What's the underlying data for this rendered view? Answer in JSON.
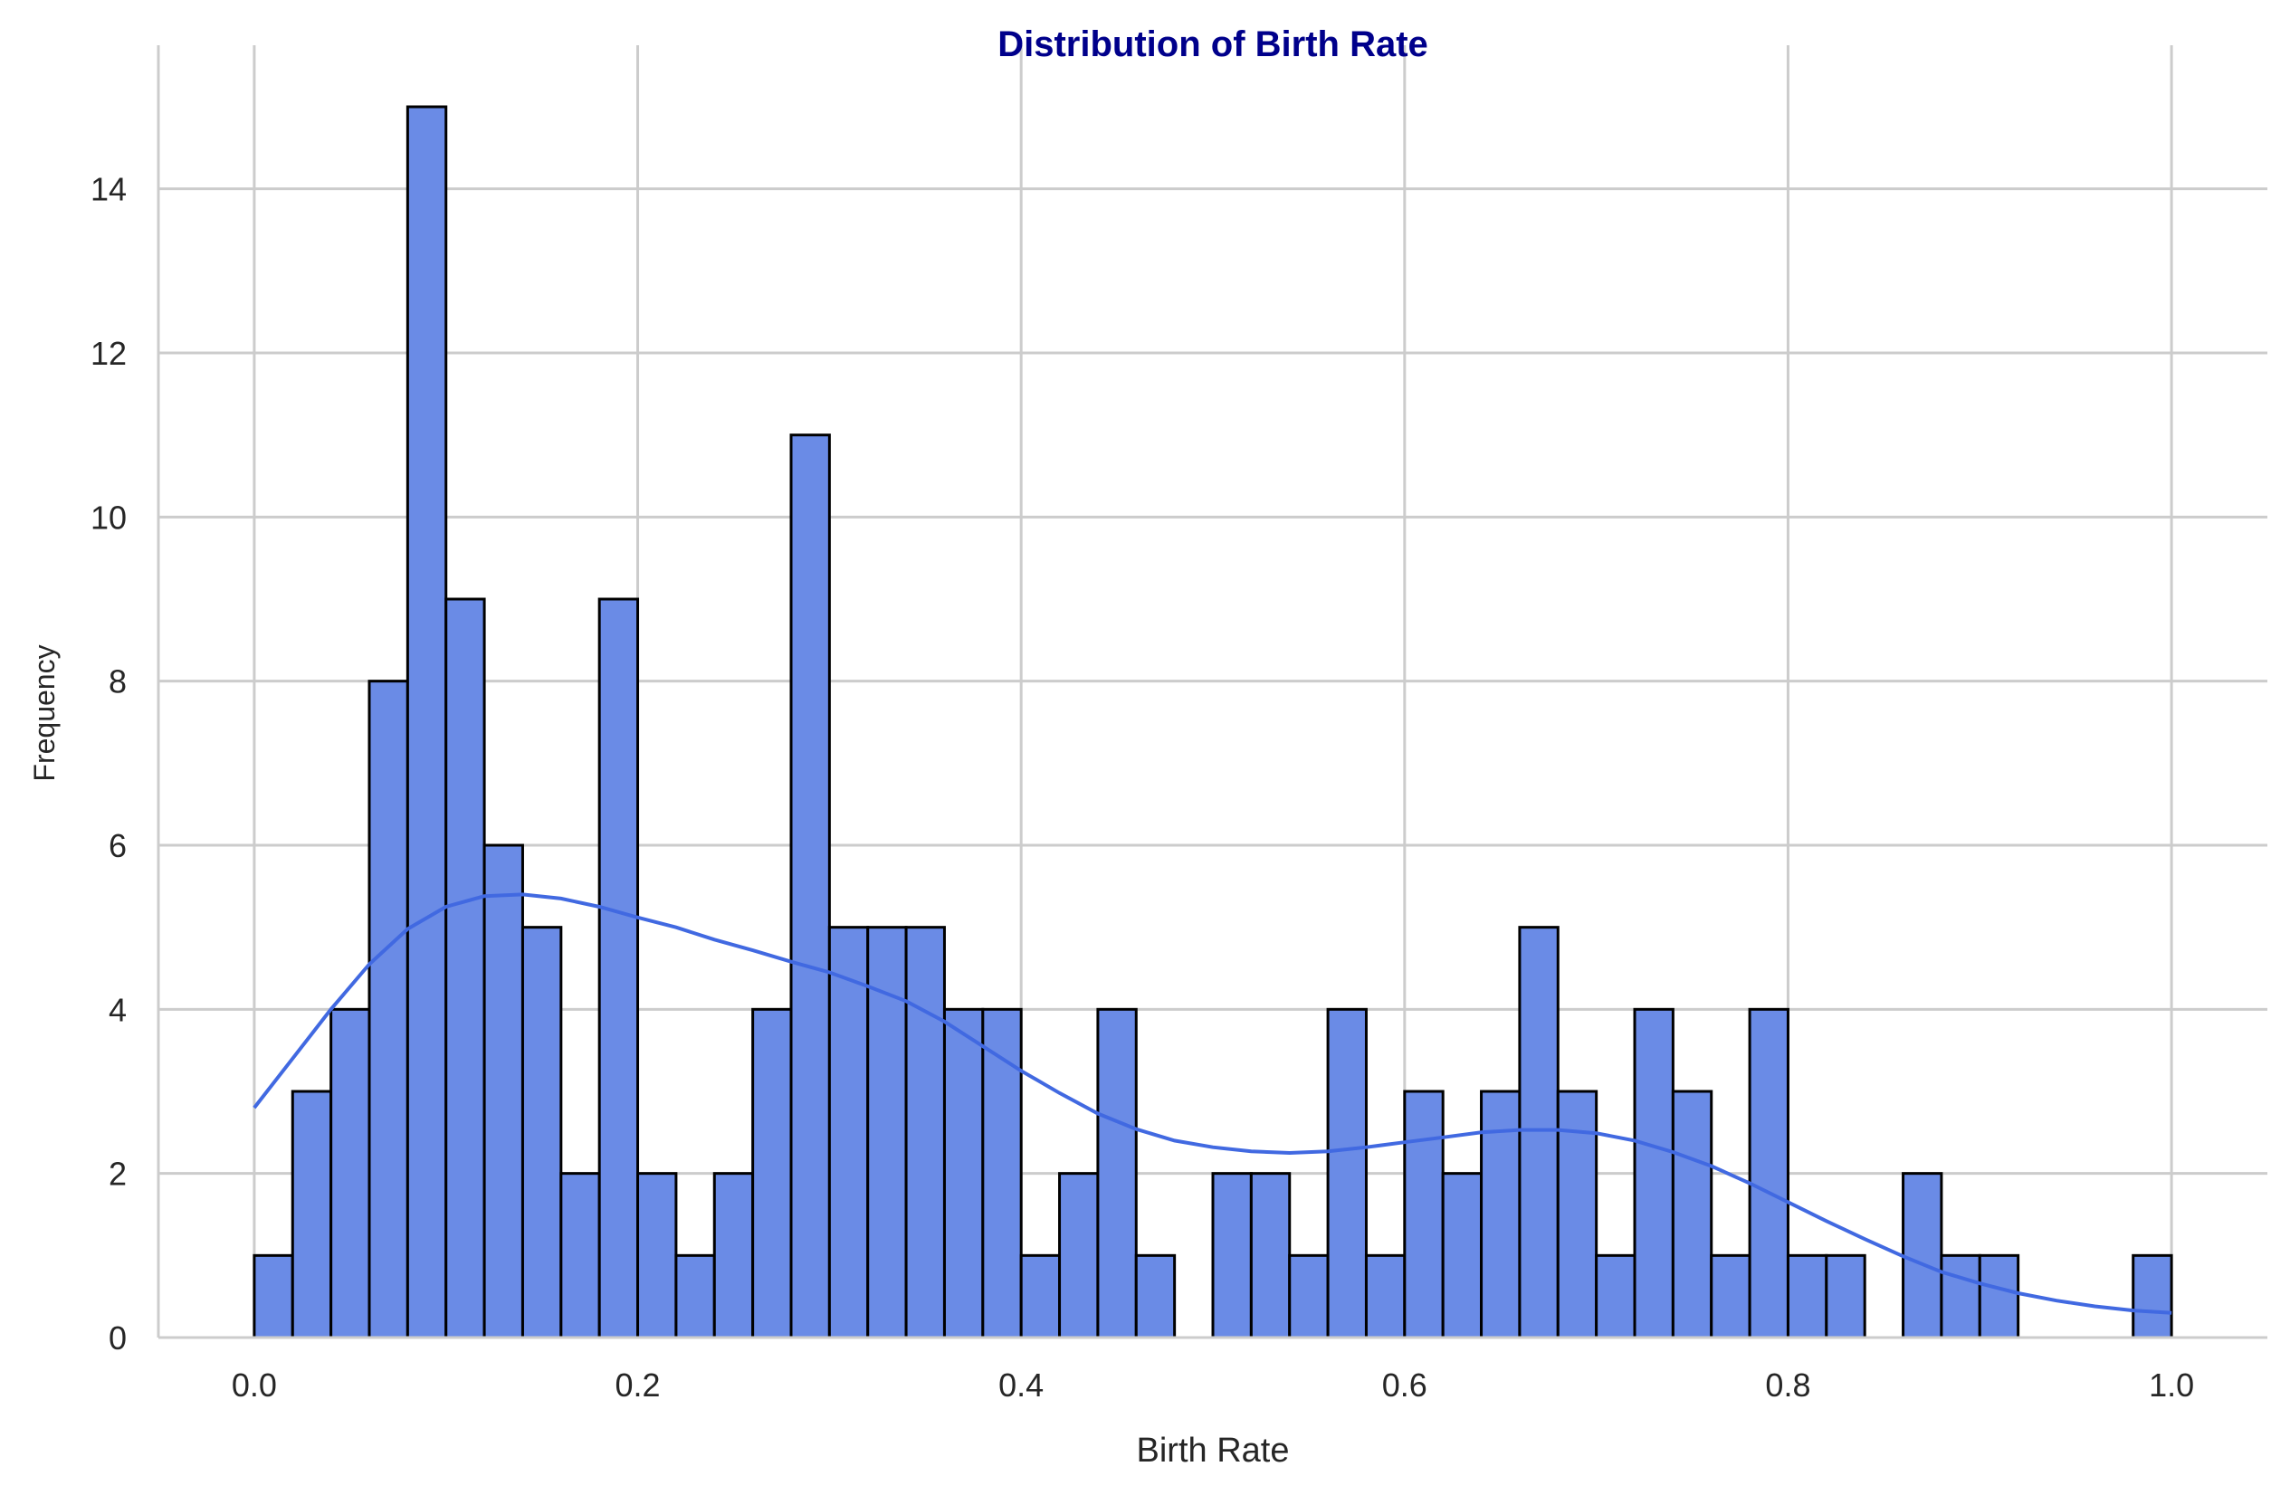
{
  "colors": {
    "bar_fill": "#6A8BE6",
    "bar_edge": "#000000",
    "kde_line": "#4169E1",
    "title": "#00008B",
    "grid": "#CCCCCC"
  },
  "chart_data": {
    "type": "bar",
    "subtype": "histogram-with-kde",
    "title": "Distribution of Birth Rate",
    "xlabel": "Birth Rate",
    "ylabel": "Frequency",
    "xlim": [
      -0.05,
      1.05
    ],
    "ylim": [
      0,
      15.75
    ],
    "grid": true,
    "bin_width": 0.02,
    "bin_start": 0.0,
    "counts": [
      1,
      3,
      4,
      8,
      15,
      9,
      6,
      5,
      2,
      9,
      2,
      1,
      2,
      4,
      11,
      5,
      5,
      5,
      4,
      4,
      1,
      2,
      4,
      1,
      0,
      2,
      2,
      1,
      4,
      1,
      3,
      2,
      3,
      5,
      3,
      1,
      4,
      3,
      1,
      4,
      1,
      1,
      0,
      2,
      1,
      1,
      0,
      0,
      0,
      1
    ],
    "xticks": [
      0.0,
      0.2,
      0.4,
      0.6,
      0.8,
      1.0
    ],
    "xtick_labels": [
      "0.0",
      "0.2",
      "0.4",
      "0.6",
      "0.8",
      "1.0"
    ],
    "yticks": [
      0,
      2,
      4,
      6,
      8,
      10,
      12,
      14
    ],
    "ytick_labels": [
      "0",
      "2",
      "4",
      "6",
      "8",
      "10",
      "12",
      "14"
    ],
    "kde": {
      "x": [
        0.0,
        0.02,
        0.04,
        0.06,
        0.08,
        0.1,
        0.12,
        0.14,
        0.16,
        0.18,
        0.2,
        0.22,
        0.24,
        0.26,
        0.28,
        0.3,
        0.32,
        0.34,
        0.36,
        0.38,
        0.4,
        0.42,
        0.44,
        0.46,
        0.48,
        0.5,
        0.52,
        0.54,
        0.56,
        0.58,
        0.6,
        0.62,
        0.64,
        0.66,
        0.68,
        0.7,
        0.72,
        0.74,
        0.76,
        0.78,
        0.8,
        0.82,
        0.84,
        0.86,
        0.88,
        0.9,
        0.92,
        0.94,
        0.96,
        0.98,
        1.0
      ],
      "y": [
        2.8,
        3.4,
        4.0,
        4.55,
        4.98,
        5.25,
        5.38,
        5.4,
        5.35,
        5.25,
        5.12,
        5.0,
        4.85,
        4.72,
        4.58,
        4.45,
        4.28,
        4.1,
        3.85,
        3.55,
        3.25,
        2.98,
        2.73,
        2.54,
        2.4,
        2.32,
        2.27,
        2.25,
        2.27,
        2.32,
        2.38,
        2.44,
        2.5,
        2.53,
        2.53,
        2.49,
        2.4,
        2.26,
        2.09,
        1.88,
        1.65,
        1.42,
        1.2,
        0.99,
        0.8,
        0.66,
        0.54,
        0.45,
        0.38,
        0.33,
        0.3
      ]
    }
  }
}
